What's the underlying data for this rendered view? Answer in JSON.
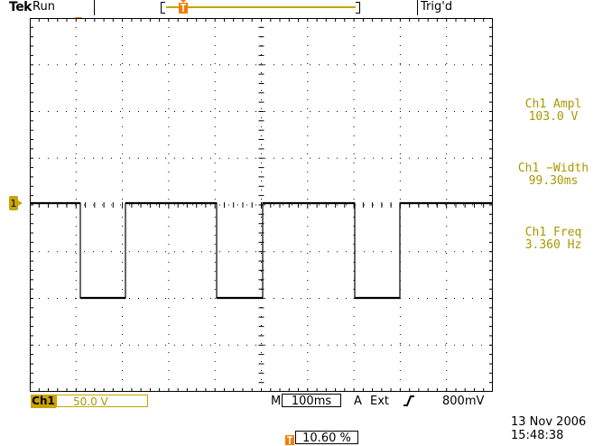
{
  "header": {
    "brand": "Tek",
    "run_status": "Run",
    "trigger_status": "Trig'd"
  },
  "channel": {
    "label": "Ch1",
    "marker": "1",
    "volts_per_div": "50.0 V"
  },
  "measurements": [
    {
      "name": "Ch1 Ampl",
      "value": "103.0 V"
    },
    {
      "name": "Ch1 −Width",
      "value": "99.30ms"
    },
    {
      "name": "Ch1 Freq",
      "value": "3.360 Hz"
    }
  ],
  "timebase": {
    "prefix": "M",
    "value": "100ms"
  },
  "trigger": {
    "mode": "A",
    "source": "Ext",
    "slope": "rising-edge-icon",
    "level": "800mV",
    "position": "10.60 %"
  },
  "datetime": {
    "date": "13 Nov 2006",
    "time": "15:48:38"
  },
  "colors": {
    "channel1": "#c8a400",
    "measurement_text": "#a89800",
    "trigger_marker": "#f07e00",
    "trace": "#000000",
    "graticule": "#000000"
  }
}
